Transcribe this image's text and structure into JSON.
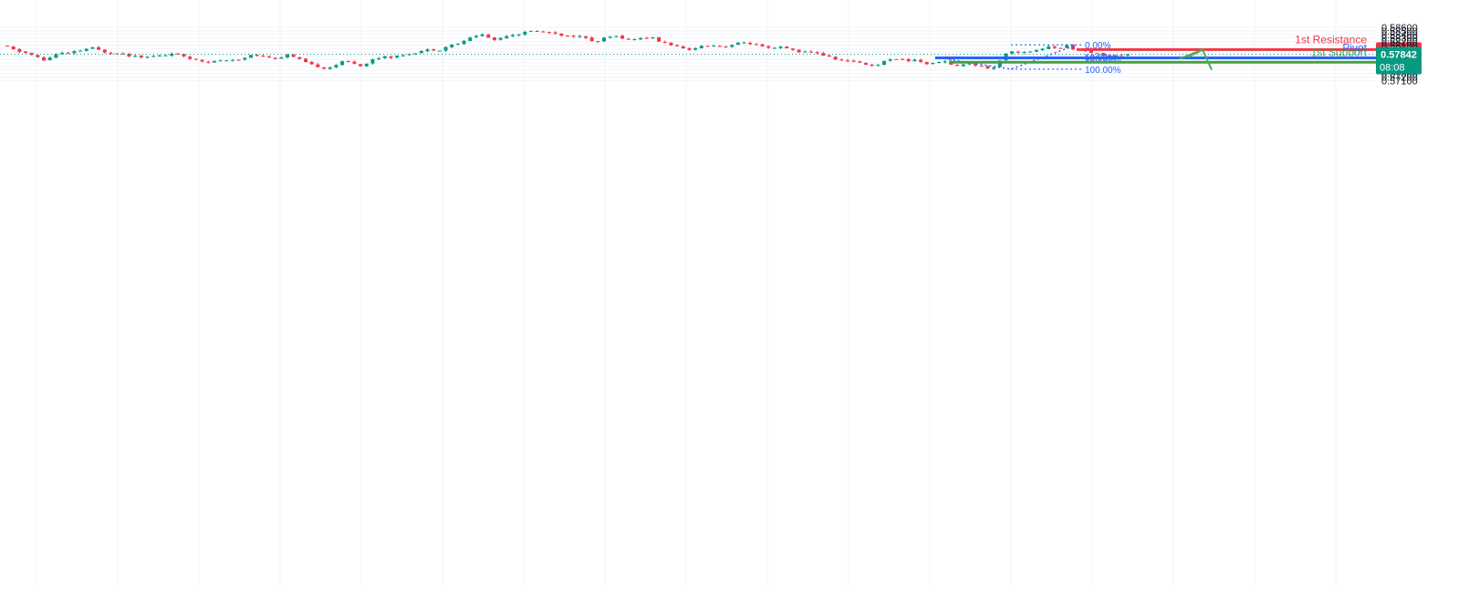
{
  "chart_data": {
    "type": "candlestick",
    "y_axis": {
      "min": 0.571,
      "max": 0.5865,
      "ticks": [
        "0.58600",
        "0.58500",
        "0.58400",
        "0.58300",
        "0.58200",
        "0.58100",
        "0.58000",
        "0.57900",
        "0.57800",
        "0.57700",
        "0.57600",
        "0.57500",
        "0.57400",
        "0.57300",
        "0.57200",
        "0.57100"
      ]
    },
    "grid": true,
    "current_price": {
      "value": 0.57842,
      "label": "0.57842",
      "countdown": "08:08"
    },
    "levels": [
      {
        "name": "1st Resistance",
        "label": "0.57976",
        "value": 0.57976,
        "color": "#f23645"
      },
      {
        "name": "Pivot",
        "label": "0.57740",
        "value": 0.5774,
        "color": "#2962ff"
      },
      {
        "name": "1st Support",
        "label": "0.57619",
        "value": 0.57619,
        "color": "#43a047"
      }
    ],
    "fibonacci": [
      {
        "label": "0.00%",
        "value": 0.58108
      },
      {
        "label": "50.00%",
        "value": 0.57765
      },
      {
        "label": "100.00%",
        "value": 0.5774
      },
      {
        "label": "100.00%",
        "value": 0.57425
      }
    ],
    "price_path": [
      0.5805,
      0.5795,
      0.579,
      0.5785,
      0.5775,
      0.5765,
      0.5782,
      0.5788,
      0.5786,
      0.5792,
      0.5796,
      0.5804,
      0.5796,
      0.579,
      0.5788,
      0.5788,
      0.578,
      0.5782,
      0.5775,
      0.5778,
      0.578,
      0.5782,
      0.579,
      0.5778,
      0.5772,
      0.577,
      0.5765,
      0.5762,
      0.5768,
      0.5765,
      0.5767,
      0.577,
      0.5784,
      0.5782,
      0.5778,
      0.5772,
      0.5775,
      0.5783,
      0.5774,
      0.5765,
      0.5755,
      0.575,
      0.5745,
      0.575,
      0.5762,
      0.5764,
      0.5758,
      0.575,
      0.5768,
      0.5774,
      0.578,
      0.5775,
      0.5782,
      0.5786,
      0.579,
      0.5795,
      0.5798,
      0.5796,
      0.5806,
      0.5813,
      0.5816,
      0.583,
      0.5838,
      0.584,
      0.5823,
      0.5829,
      0.5838,
      0.584,
      0.5844,
      0.5848,
      0.585,
      0.5845,
      0.5846,
      0.584,
      0.5834,
      0.5836,
      0.5833,
      0.5823,
      0.582,
      0.583,
      0.5836,
      0.5832,
      0.5825,
      0.5828,
      0.583,
      0.5833,
      0.5821,
      0.5815,
      0.581,
      0.58,
      0.5795,
      0.5805,
      0.5808,
      0.581,
      0.5807,
      0.5807,
      0.5812,
      0.5818,
      0.5815,
      0.581,
      0.5803,
      0.5798,
      0.5805,
      0.58,
      0.5795,
      0.579,
      0.579,
      0.5788,
      0.578,
      0.5773,
      0.5768,
      0.5764,
      0.5764,
      0.576,
      0.5752,
      0.5755,
      0.5767,
      0.5774,
      0.577,
      0.5766,
      0.577,
      0.576,
      0.5755,
      0.5765,
      0.5762,
      0.5753,
      0.5751,
      0.5762,
      0.5753,
      0.5748,
      0.5743,
      0.5765,
      0.579,
      0.5792,
      0.579,
      0.579,
      0.5795,
      0.5803,
      0.5806,
      0.5798,
      0.581,
      0.5797,
      0.5795,
      0.5787,
      0.5785,
      0.5781,
      0.5778,
      0.5782,
      0.5784
    ]
  }
}
